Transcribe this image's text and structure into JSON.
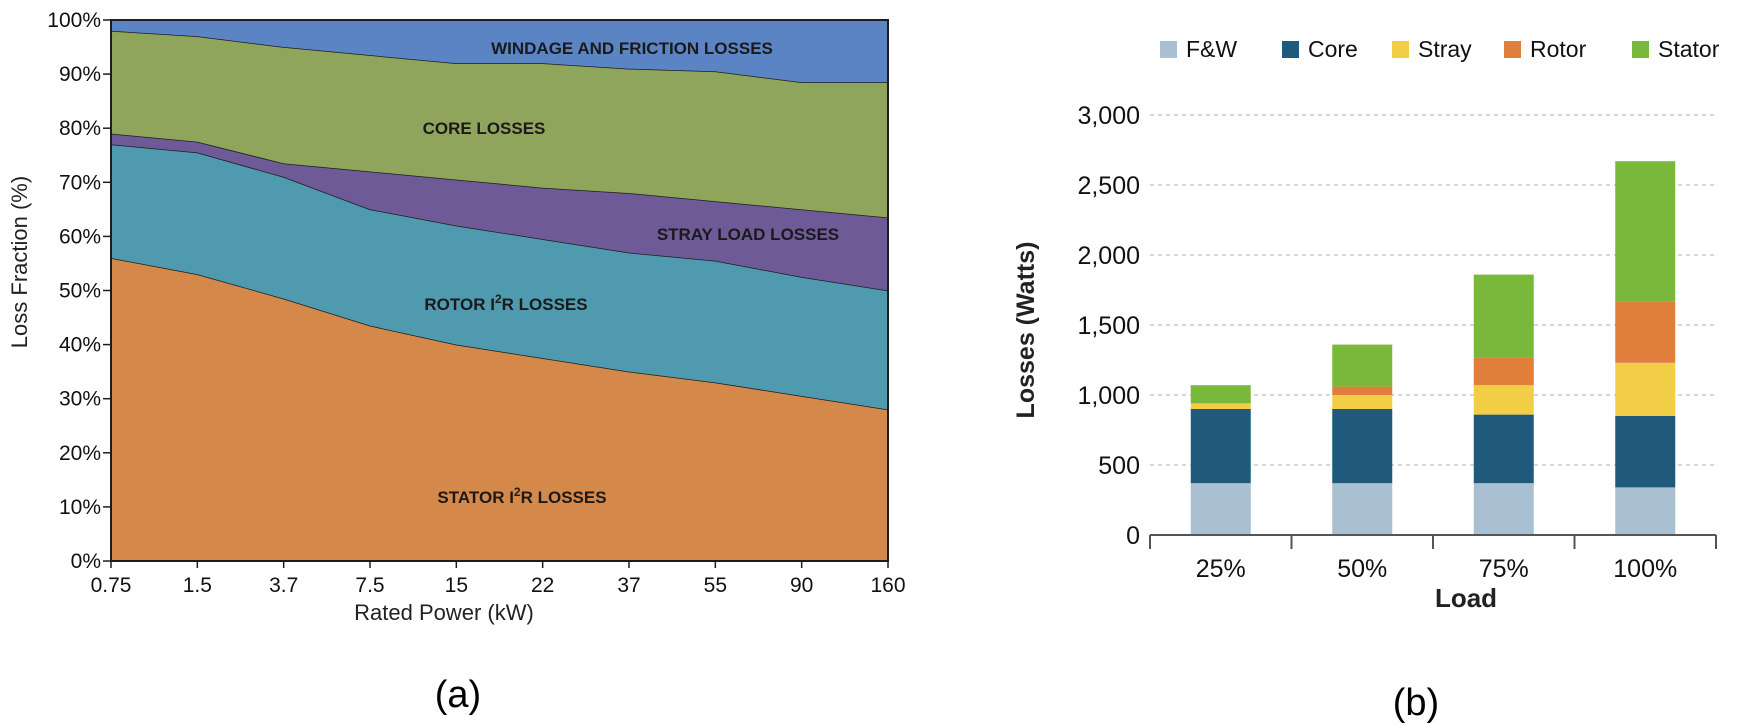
{
  "panels": {
    "a": "(a)",
    "b": "(b)"
  },
  "chart_data": [
    {
      "type": "area",
      "stacked": true,
      "ylabel": "Loss Fraction (%)",
      "xlabel": "Rated Power (kW)",
      "categories": [
        "0.75",
        "1.5",
        "3.7",
        "7.5",
        "15",
        "22",
        "37",
        "55",
        "90",
        "160"
      ],
      "yticks": [
        "0%",
        "10%",
        "20%",
        "30%",
        "40%",
        "50%",
        "60%",
        "70%",
        "80%",
        "90%",
        "100%"
      ],
      "ylim": [
        0,
        100
      ],
      "grid": false,
      "legend": "none",
      "series": [
        {
          "name": "STATOR I²R LOSSES",
          "label_main": "STATOR I",
          "label_sup": "2",
          "label_tail": "R LOSSES",
          "color": "#d4884a",
          "values": [
            56,
            53,
            48.5,
            43.5,
            40,
            37.5,
            35,
            33,
            30.5,
            28
          ]
        },
        {
          "name": "ROTOR I²R LOSSES",
          "label_main": "ROTOR I",
          "label_sup": "2",
          "label_tail": "R LOSSES",
          "color": "#4f9aae",
          "values": [
            21,
            22.5,
            22.5,
            21.5,
            22,
            22,
            22,
            22.5,
            22,
            22
          ]
        },
        {
          "name": "STRAY LOAD LOSSES",
          "color": "#6e5a96",
          "values": [
            2,
            2,
            2.5,
            7,
            8.5,
            9.5,
            11,
            11,
            12.5,
            13.5
          ]
        },
        {
          "name": "CORE LOSSES",
          "color": "#8fa55b",
          "values": [
            19,
            19.5,
            21.5,
            21.5,
            21.5,
            23,
            23,
            24,
            23.5,
            25
          ]
        },
        {
          "name": "WINDAGE AND FRICTION LOSSES",
          "color": "#5a84c4",
          "values": [
            2,
            3,
            5,
            6.5,
            8,
            8,
            9,
            9.5,
            11.5,
            11.5
          ]
        }
      ]
    },
    {
      "type": "bar",
      "stacked": true,
      "ylabel": "Losses (Watts)",
      "xlabel": "Load",
      "categories": [
        "25%",
        "50%",
        "75%",
        "100%"
      ],
      "yticks": [
        "0",
        "500",
        "1,000",
        "1,500",
        "2,000",
        "2,500",
        "3,000"
      ],
      "ylim": [
        0,
        3000
      ],
      "grid": true,
      "legend": "top",
      "series": [
        {
          "name": "F&W",
          "color": "#a9c0d3",
          "values": [
            370,
            370,
            370,
            340
          ]
        },
        {
          "name": "Core",
          "color": "#1f5a7c",
          "values": [
            530,
            530,
            490,
            510
          ]
        },
        {
          "name": "Stray",
          "color": "#f2cd46",
          "values": [
            40,
            100,
            210,
            380
          ]
        },
        {
          "name": "Rotor",
          "color": "#e07e3c",
          "values": [
            0,
            60,
            200,
            440
          ]
        },
        {
          "name": "Stator",
          "color": "#7ab83c",
          "values": [
            130,
            300,
            590,
            1000
          ]
        }
      ]
    }
  ]
}
